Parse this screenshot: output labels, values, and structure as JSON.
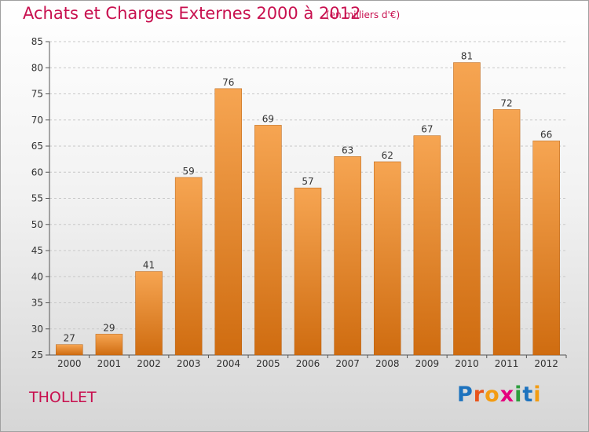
{
  "title": "Achats et Charges Externes 2000 à 2012",
  "unit": "(en milliers d'€)",
  "commune": "THOLLET",
  "logo": {
    "text": "Proxiti",
    "letter_colors": [
      "#1e73be",
      "#e8541c",
      "#f39c12",
      "#e5007e",
      "#2e9e3e",
      "#1e73be",
      "#f39c12"
    ]
  },
  "colors": {
    "title": "#c8104f",
    "bar_light": "#f6a552",
    "bar_dark": "#cf6c10",
    "grid": "#c8c8c8"
  },
  "chart_data": {
    "type": "bar",
    "categories": [
      "2000",
      "2001",
      "2002",
      "2003",
      "2004",
      "2005",
      "2006",
      "2007",
      "2008",
      "2009",
      "2010",
      "2011",
      "2012"
    ],
    "values": [
      27,
      29,
      41,
      59,
      76,
      69,
      57,
      63,
      62,
      67,
      81,
      72,
      66
    ],
    "title": "Achats et Charges Externes 2000 à 2012",
    "xlabel": "",
    "ylabel": "",
    "ylim": [
      25,
      85
    ],
    "yticks": [
      25,
      30,
      35,
      40,
      45,
      50,
      55,
      60,
      65,
      70,
      75,
      80,
      85
    ],
    "grid": true,
    "legend": "none"
  }
}
